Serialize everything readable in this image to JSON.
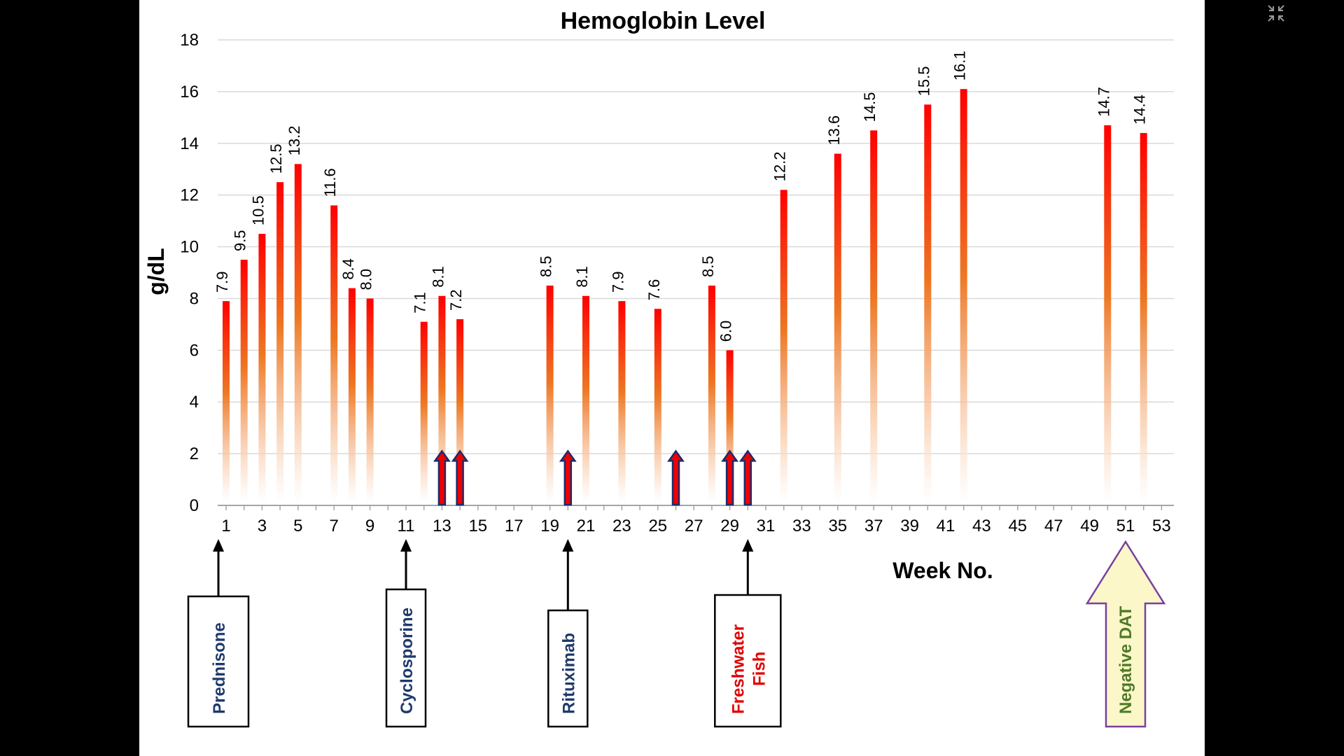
{
  "chart_data": {
    "type": "bar",
    "title": "Hemoglobin Level",
    "xlabel": "Week No.",
    "ylabel": "g/dL",
    "ylim": [
      0,
      18
    ],
    "yticks": [
      0,
      2,
      4,
      6,
      8,
      10,
      12,
      14,
      16,
      18
    ],
    "xticks": [
      1,
      3,
      5,
      7,
      9,
      11,
      13,
      15,
      17,
      19,
      21,
      23,
      25,
      27,
      29,
      31,
      33,
      35,
      37,
      39,
      41,
      43,
      45,
      47,
      49,
      51,
      53
    ],
    "xlim": [
      1,
      53
    ],
    "grid": true,
    "points": [
      {
        "x": 1,
        "y": 7.9,
        "label": "7.9"
      },
      {
        "x": 2,
        "y": 9.5,
        "label": "9.5"
      },
      {
        "x": 3,
        "y": 10.5,
        "label": "10.5"
      },
      {
        "x": 4,
        "y": 12.5,
        "label": "12.5"
      },
      {
        "x": 5,
        "y": 13.2,
        "label": "13.2"
      },
      {
        "x": 7,
        "y": 11.6,
        "label": "11.6"
      },
      {
        "x": 8,
        "y": 8.4,
        "label": "8.4"
      },
      {
        "x": 9,
        "y": 8.0,
        "label": "8.0"
      },
      {
        "x": 12,
        "y": 7.1,
        "label": "7.1"
      },
      {
        "x": 13,
        "y": 8.1,
        "label": "8.1"
      },
      {
        "x": 14,
        "y": 7.2,
        "label": "7.2"
      },
      {
        "x": 19,
        "y": 8.5,
        "label": "8.5"
      },
      {
        "x": 21,
        "y": 8.1,
        "label": "8.1"
      },
      {
        "x": 23,
        "y": 7.9,
        "label": "7.9"
      },
      {
        "x": 25,
        "y": 7.6,
        "label": "7.6"
      },
      {
        "x": 28,
        "y": 8.5,
        "label": "8.5"
      },
      {
        "x": 29,
        "y": 6.0,
        "label": "6.0"
      },
      {
        "x": 32,
        "y": 12.2,
        "label": "12.2"
      },
      {
        "x": 35,
        "y": 13.6,
        "label": "13.6"
      },
      {
        "x": 37,
        "y": 14.5,
        "label": "14.5"
      },
      {
        "x": 40,
        "y": 15.5,
        "label": "15.5"
      },
      {
        "x": 42,
        "y": 16.1,
        "label": "16.1"
      },
      {
        "x": 50,
        "y": 14.7,
        "label": "14.7"
      },
      {
        "x": 52,
        "y": 14.4,
        "label": "14.4"
      }
    ],
    "transfusion_weeks": [
      13,
      14,
      20,
      26,
      29,
      30
    ],
    "annotations": [
      {
        "week": 1,
        "text": "Prednisone",
        "color": "#1f3a6b"
      },
      {
        "week": 11,
        "text": "Cyclosporine",
        "color": "#1f3a6b"
      },
      {
        "week": 20,
        "text": "Rituximab",
        "color": "#1f3a6b"
      },
      {
        "week": 30,
        "text": [
          "Freshwater",
          "Fish"
        ],
        "color": "#e00000"
      },
      {
        "week": 51,
        "text": "Negative DAT",
        "color": "#4f7a28",
        "style": "big-arrow"
      }
    ],
    "colors": {
      "bar_top": "#ff0000",
      "bar_mid": "#ee7722",
      "bar_bottom": "#ffffff",
      "transfusion_fill": "#ee0000",
      "transfusion_outline": "#1f2a6b",
      "dat_arrow_fill": "#fbf7c8",
      "dat_arrow_outline": "#7b3fa0"
    }
  },
  "window": {
    "exit_fullscreen_icon": "exit-fullscreen-icon"
  }
}
